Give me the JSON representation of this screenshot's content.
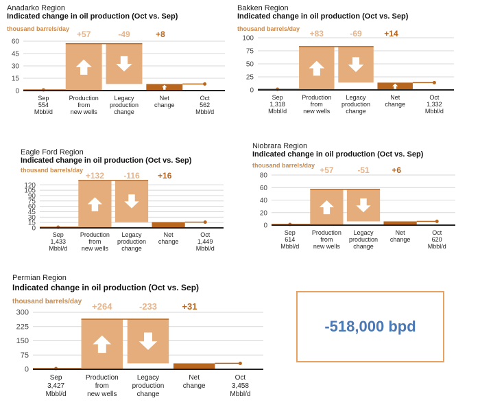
{
  "colors": {
    "fill_light": "#e4ad7b",
    "fill_dark": "#b8651d",
    "axis": "#222222",
    "grid": "#d7d7d7",
    "callout_border": "#e8a15f",
    "callout_text": "#4a78b5"
  },
  "icons": {
    "up": "up-arrow-icon",
    "down": "down-arrow-icon"
  },
  "callout": {
    "text": "-518,000 bpd"
  },
  "chart_data": [
    {
      "type": "bar",
      "region": "Anadarko Region",
      "title": "Indicated change in oil production (Oct vs. Sep)",
      "ylabel": "thousand barrels/day",
      "yticks": [
        0,
        15,
        30,
        45,
        60
      ],
      "ylim": [
        0,
        60
      ],
      "sep_value": 554,
      "oct_value": 562,
      "new_wells": 57,
      "legacy": -49,
      "net": 8,
      "labels": {
        "new_wells": "+57",
        "legacy": "-49",
        "net": "+8"
      },
      "categories": [
        [
          "Sep",
          "554",
          "Mbbl/d"
        ],
        [
          "Production",
          "from",
          "new wells"
        ],
        [
          "Legacy",
          "production",
          "change"
        ],
        [
          "Net",
          "change"
        ],
        [
          "Oct",
          "562",
          "Mbbl/d"
        ]
      ]
    },
    {
      "type": "bar",
      "region": "Bakken Region",
      "title": "Indicated change in oil production (Oct vs. Sep)",
      "ylabel": "thousand barrels/day",
      "yticks": [
        0,
        25,
        50,
        75,
        100
      ],
      "ylim": [
        0,
        100
      ],
      "sep_value": 1318,
      "oct_value": 1332,
      "new_wells": 83,
      "legacy": -69,
      "net": 14,
      "labels": {
        "new_wells": "+83",
        "legacy": "-69",
        "net": "+14"
      },
      "categories": [
        [
          "Sep",
          "1,318",
          "Mbbl/d"
        ],
        [
          "Production",
          "from",
          "new wells"
        ],
        [
          "Legacy",
          "production",
          "change"
        ],
        [
          "Net",
          "change"
        ],
        [
          "Oct",
          "1,332",
          "Mbbl/d"
        ]
      ]
    },
    {
      "type": "bar",
      "region": "Eagle Ford Region",
      "title": "Indicated change in oil production (Oct vs. Sep)",
      "ylabel": "thousand barrels/day",
      "yticks": [
        0,
        15,
        30,
        45,
        60,
        75,
        90,
        105,
        120
      ],
      "ylim": [
        0,
        132
      ],
      "sep_value": 1433,
      "oct_value": 1449,
      "new_wells": 132,
      "legacy": -116,
      "net": 16,
      "labels": {
        "new_wells": "+132",
        "legacy": "-116",
        "net": "+16"
      },
      "categories": [
        [
          "Sep",
          "1,433",
          "Mbbl/d"
        ],
        [
          "Production",
          "from",
          "new wells"
        ],
        [
          "Legacy",
          "production",
          "change"
        ],
        [
          "Net",
          "change"
        ],
        [
          "Oct",
          "1,449",
          "Mbbl/d"
        ]
      ]
    },
    {
      "type": "bar",
      "region": "Niobrara Region",
      "title": "Indicated change in oil production (Oct vs. Sep)",
      "ylabel": "thousand barrels/day",
      "yticks": [
        0,
        20,
        40,
        60,
        80
      ],
      "ylim": [
        0,
        80
      ],
      "sep_value": 614,
      "oct_value": 620,
      "new_wells": 57,
      "legacy": -51,
      "net": 6,
      "labels": {
        "new_wells": "+57",
        "legacy": "-51",
        "net": "+6"
      },
      "categories": [
        [
          "Sep",
          "614",
          "Mbbl/d"
        ],
        [
          "Production",
          "from",
          "new wells"
        ],
        [
          "Legacy",
          "production",
          "change"
        ],
        [
          "Net",
          "change"
        ],
        [
          "Oct",
          "620",
          "Mbbl/d"
        ]
      ]
    },
    {
      "type": "bar",
      "region": "Permian Region",
      "title": "Indicated change in oil production (Oct vs. Sep)",
      "ylabel": "thousand barrels/day",
      "yticks": [
        0,
        75,
        150,
        225,
        300
      ],
      "ylim": [
        0,
        300
      ],
      "sep_value": 3427,
      "oct_value": 3458,
      "new_wells": 264,
      "legacy": -233,
      "net": 31,
      "labels": {
        "new_wells": "+264",
        "legacy": "-233",
        "net": "+31"
      },
      "categories": [
        [
          "Sep",
          "3,427",
          "Mbbl/d"
        ],
        [
          "Production",
          "from",
          "new wells"
        ],
        [
          "Legacy",
          "production",
          "change"
        ],
        [
          "Net",
          "change"
        ],
        [
          "Oct",
          "3,458",
          "Mbbl/d"
        ]
      ]
    }
  ]
}
